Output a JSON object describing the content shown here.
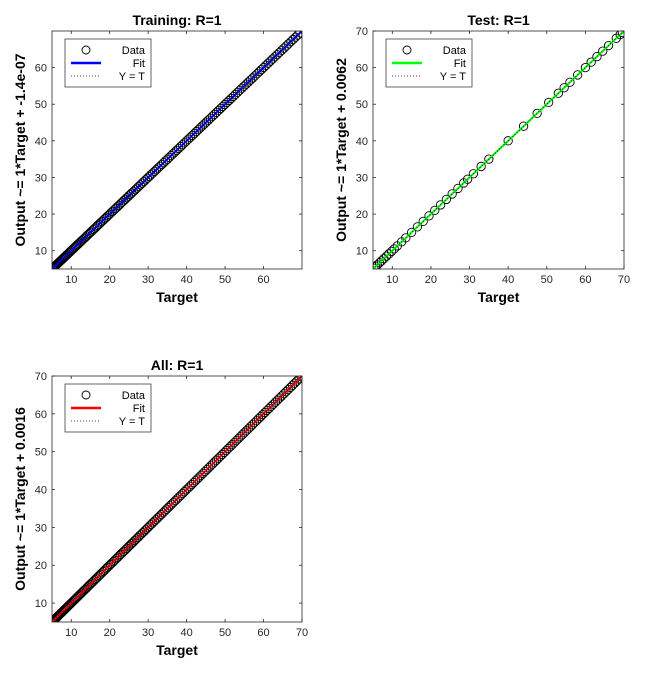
{
  "chart_data": [
    {
      "type": "scatter",
      "title": "Training: R=1",
      "xlabel": "Target",
      "ylabel": "Output ~= 1*Target + -1.4e-07",
      "xlim": [
        5,
        70
      ],
      "ylim": [
        5,
        70
      ],
      "xticks": [
        "10",
        "20",
        "30",
        "40",
        "50",
        "60"
      ],
      "yticks": [
        "10",
        "20",
        "30",
        "40",
        "50",
        "60"
      ],
      "fit": {
        "slope": 1,
        "intercept": -1.4e-07
      },
      "fit_color": "#0000ff",
      "x_range": [
        5.2,
        69.5
      ],
      "n_points": 150,
      "legend": {
        "placement": "top-left",
        "entries": [
          "Data",
          "Fit",
          "Y = T"
        ]
      }
    },
    {
      "type": "scatter",
      "title": "Test: R=1",
      "xlabel": "Target",
      "ylabel": "Output ~= 1*Target + 0.0062",
      "xlim": [
        5,
        70
      ],
      "ylim": [
        5,
        70
      ],
      "xticks": [
        "10",
        "20",
        "30",
        "40",
        "50",
        "60",
        "70"
      ],
      "yticks": [
        "10",
        "20",
        "30",
        "40",
        "50",
        "60",
        "70"
      ],
      "fit": {
        "slope": 1,
        "intercept": 0.0062
      },
      "fit_color": "#00ff00",
      "x": [
        5.2,
        5.6,
        6.1,
        6.7,
        7.2,
        7.8,
        8.5,
        9.1,
        9.8,
        10.5,
        11.3,
        12.4,
        13.5,
        15.0,
        16.5,
        18.0,
        19.5,
        21.0,
        22.5,
        24.0,
        25.5,
        27.0,
        28.5,
        29.5,
        31.0,
        33.0,
        35.0,
        40.0,
        44.0,
        47.5,
        50.5,
        53.0,
        54.5,
        56.0,
        58.0,
        60.0,
        61.5,
        63.0,
        64.5,
        66.0,
        68.0,
        69.0,
        69.6
      ],
      "legend": {
        "placement": "top-left",
        "entries": [
          "Data",
          "Fit",
          "Y = T"
        ]
      }
    },
    {
      "type": "scatter",
      "title": "All: R=1",
      "xlabel": "Target",
      "ylabel": "Output ~= 1*Target + 0.0016",
      "xlim": [
        5,
        70
      ],
      "ylim": [
        5,
        70
      ],
      "xticks": [
        "10",
        "20",
        "30",
        "40",
        "50",
        "60",
        "70"
      ],
      "yticks": [
        "10",
        "20",
        "30",
        "40",
        "50",
        "60",
        "70"
      ],
      "fit": {
        "slope": 1,
        "intercept": 0.0016
      },
      "fit_color": "#ff0000",
      "x_range": [
        5.2,
        69.8
      ],
      "n_points": 160,
      "legend": {
        "placement": "top-left",
        "entries": [
          "Data",
          "Fit",
          "Y = T"
        ]
      }
    }
  ]
}
